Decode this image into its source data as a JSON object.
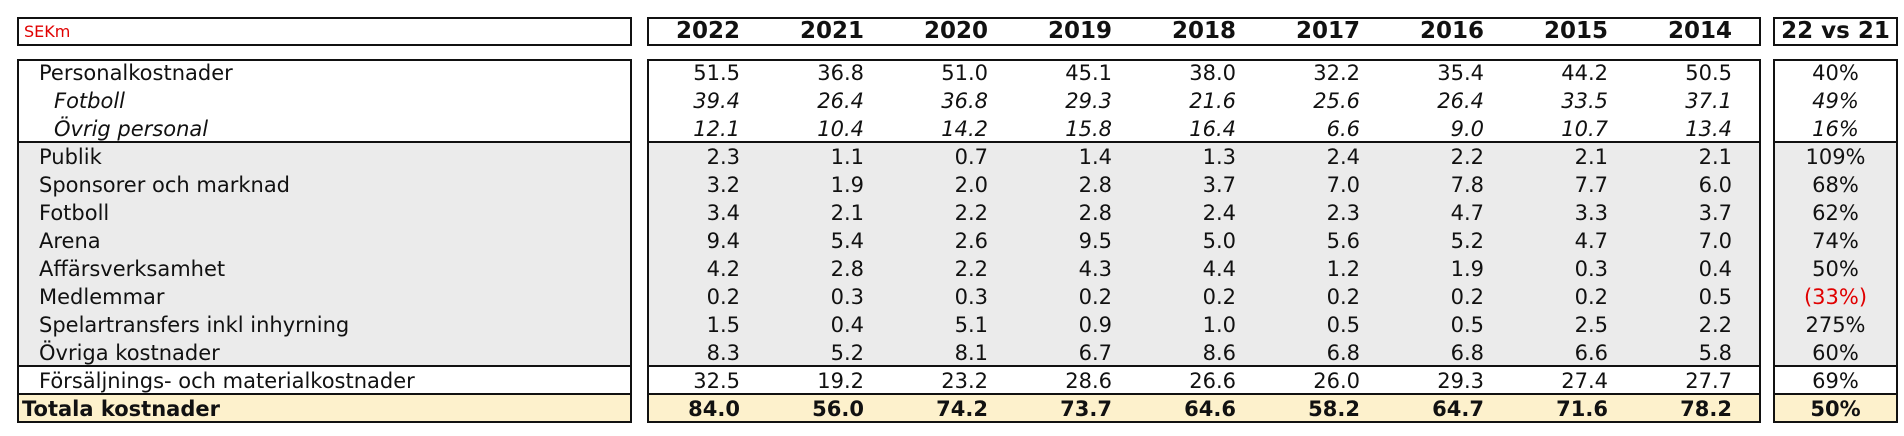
{
  "header": {
    "unit": "SEKm",
    "years": [
      "2022",
      "2021",
      "2020",
      "2019",
      "2018",
      "2017",
      "2016",
      "2015",
      "2014"
    ],
    "change": "22 vs 21"
  },
  "sections": [
    {
      "rows": [
        {
          "label": "Personalkostnader",
          "values": [
            "51.5",
            "36.8",
            "51.0",
            "45.1",
            "38.0",
            "32.2",
            "35.4",
            "44.2",
            "50.5"
          ],
          "change": "40%"
        },
        {
          "label": "Fotboll",
          "values": [
            "39.4",
            "26.4",
            "36.8",
            "29.3",
            "21.6",
            "25.6",
            "26.4",
            "33.5",
            "37.1"
          ],
          "change": "49%"
        },
        {
          "label": "Övrig personal",
          "values": [
            "12.1",
            "10.4",
            "14.2",
            "15.8",
            "16.4",
            "6.6",
            "9.0",
            "10.7",
            "13.4"
          ],
          "change": "16%"
        }
      ]
    },
    {
      "rows": [
        {
          "label": "Publik",
          "values": [
            "2.3",
            "1.1",
            "0.7",
            "1.4",
            "1.3",
            "2.4",
            "2.2",
            "2.1",
            "2.1"
          ],
          "change": "109%"
        },
        {
          "label": "Sponsorer och marknad",
          "values": [
            "3.2",
            "1.9",
            "2.0",
            "2.8",
            "3.7",
            "7.0",
            "7.8",
            "7.7",
            "6.0"
          ],
          "change": "68%"
        },
        {
          "label": "Fotboll",
          "values": [
            "3.4",
            "2.1",
            "2.2",
            "2.8",
            "2.4",
            "2.3",
            "4.7",
            "3.3",
            "3.7"
          ],
          "change": "62%"
        },
        {
          "label": "Arena",
          "values": [
            "9.4",
            "5.4",
            "2.6",
            "9.5",
            "5.0",
            "5.6",
            "5.2",
            "4.7",
            "7.0"
          ],
          "change": "74%"
        },
        {
          "label": "Affärsverksamhet",
          "values": [
            "4.2",
            "2.8",
            "2.2",
            "4.3",
            "4.4",
            "1.2",
            "1.9",
            "0.3",
            "0.4"
          ],
          "change": "50%"
        },
        {
          "label": "Medlemmar",
          "values": [
            "0.2",
            "0.3",
            "0.3",
            "0.2",
            "0.2",
            "0.2",
            "0.2",
            "0.2",
            "0.5"
          ],
          "change": "(33%)"
        },
        {
          "label": "Spelartransfers inkl inhyrning",
          "values": [
            "1.5",
            "0.4",
            "5.1",
            "0.9",
            "1.0",
            "0.5",
            "0.5",
            "2.5",
            "2.2"
          ],
          "change": "275%"
        },
        {
          "label": "Övriga kostnader",
          "values": [
            "8.3",
            "5.2",
            "8.1",
            "6.7",
            "8.6",
            "6.8",
            "6.8",
            "6.6",
            "5.8"
          ],
          "change": "60%"
        }
      ]
    },
    {
      "rows": [
        {
          "label": "Försäljnings- och materialkostnader",
          "values": [
            "32.5",
            "19.2",
            "23.2",
            "28.6",
            "26.6",
            "26.0",
            "29.3",
            "27.4",
            "27.7"
          ],
          "change": "69%"
        }
      ]
    },
    {
      "rows": [
        {
          "label": "Totala kostnader",
          "values": [
            "84.0",
            "56.0",
            "74.2",
            "73.7",
            "64.6",
            "58.2",
            "64.7",
            "71.6",
            "78.2"
          ],
          "change": "50%"
        }
      ]
    }
  ]
}
